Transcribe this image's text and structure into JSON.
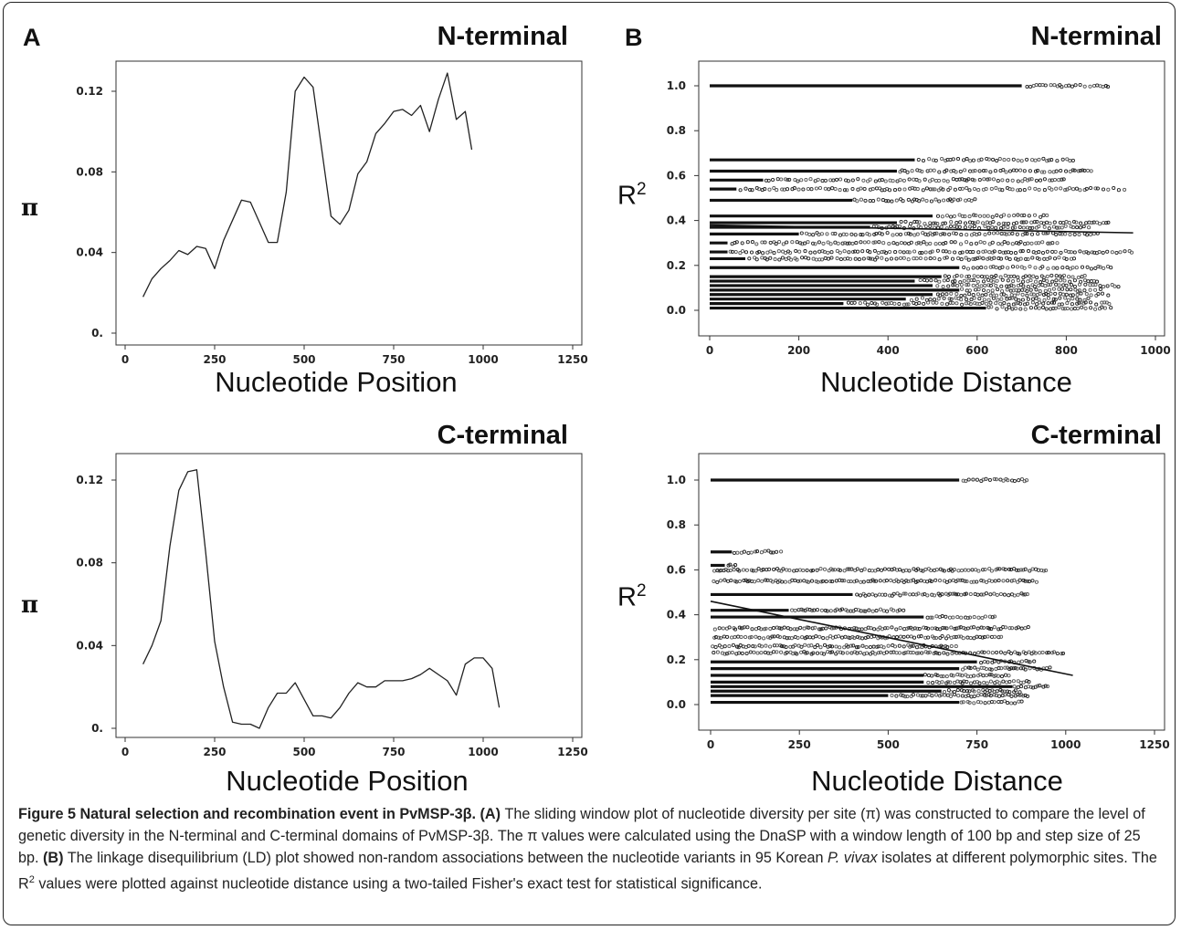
{
  "panels": {
    "a": {
      "letter": "A",
      "top_title": "N-terminal",
      "bottom_title": "C-terminal",
      "top_xlabel": "Nucleotide Position",
      "bottom_xlabel": "Nucleotide Position",
      "ylabel": "π"
    },
    "b": {
      "letter": "B",
      "top_title": "N-terminal",
      "bottom_title": "C-terminal",
      "top_xlabel": "Nucleotide Distance",
      "bottom_xlabel": "Nucleotide Distance",
      "ylabel_base": "R",
      "ylabel_sup": "2"
    }
  },
  "caption": {
    "fig_label": "Figure 5 Natural selection and recombination event in PvMSP-3β.",
    "a_marker": "(A)",
    "a_text": " The sliding window plot of nucleotide diversity per site (π) was constructed to compare the level of genetic diversity in the N-terminal and C-terminal domains of PvMSP-3β. The π values were calculated using the DnaSP with a window length of 100 bp and step size of 25 bp. ",
    "b_marker": "(B)",
    "b_text1": " The linkage disequilibrium (LD) plot showed non-random associations between the nucleotide variants in 95 Korean ",
    "b_italic": "P. vivax",
    "b_text2": " isolates at different polymorphic sites. The R",
    "b_sup": "2",
    "b_text3": " values were plotted against nucleotide distance using a two-tailed Fisher's exact test for statistical significance."
  },
  "chart_data": [
    {
      "id": "A-N",
      "type": "line",
      "xlim": [
        0,
        1250
      ],
      "ylim": [
        0,
        0.12
      ],
      "xticks": [
        "0",
        "250",
        "500",
        "750",
        "1000",
        "1250"
      ],
      "yticks": [
        "0.",
        "0.04",
        "0.08",
        "0.12"
      ],
      "x": [
        50,
        75,
        100,
        125,
        150,
        175,
        200,
        225,
        250,
        275,
        300,
        325,
        350,
        375,
        400,
        425,
        450,
        475,
        500,
        525,
        550,
        575,
        600,
        625,
        650,
        675,
        700,
        725,
        750,
        775,
        800,
        825,
        850,
        875,
        900,
        925,
        950,
        968
      ],
      "y": [
        0.018,
        0.027,
        0.032,
        0.036,
        0.041,
        0.039,
        0.043,
        0.042,
        0.032,
        0.046,
        0.056,
        0.066,
        0.065,
        0.055,
        0.045,
        0.045,
        0.07,
        0.12,
        0.127,
        0.122,
        0.09,
        0.058,
        0.054,
        0.061,
        0.079,
        0.085,
        0.099,
        0.104,
        0.11,
        0.111,
        0.108,
        0.113,
        0.1,
        0.116,
        0.129,
        0.106,
        0.11,
        0.091
      ]
    },
    {
      "id": "A-C",
      "type": "line",
      "xlim": [
        0,
        1250
      ],
      "ylim": [
        0,
        0.12
      ],
      "xticks": [
        "0",
        "250",
        "500",
        "750",
        "1000",
        "1250"
      ],
      "yticks": [
        "0.",
        "0.04",
        "0.08",
        "0.12"
      ],
      "x": [
        50,
        75,
        100,
        125,
        150,
        175,
        200,
        225,
        250,
        275,
        300,
        325,
        350,
        375,
        400,
        425,
        450,
        475,
        500,
        525,
        550,
        575,
        600,
        625,
        650,
        675,
        700,
        725,
        750,
        775,
        800,
        825,
        850,
        875,
        900,
        925,
        950,
        975,
        1000,
        1025,
        1045
      ],
      "y": [
        0.031,
        0.04,
        0.052,
        0.088,
        0.115,
        0.124,
        0.125,
        0.085,
        0.042,
        0.02,
        0.003,
        0.002,
        0.002,
        0.0,
        0.01,
        0.017,
        0.017,
        0.022,
        0.014,
        0.006,
        0.006,
        0.005,
        0.01,
        0.017,
        0.022,
        0.02,
        0.02,
        0.023,
        0.023,
        0.023,
        0.024,
        0.026,
        0.029,
        0.026,
        0.023,
        0.016,
        0.031,
        0.034,
        0.034,
        0.029,
        0.01
      ]
    },
    {
      "id": "B-N",
      "type": "scatter",
      "xlim": [
        0,
        1000
      ],
      "ylim": [
        0,
        1.0
      ],
      "xticks": [
        "0",
        "200",
        "400",
        "600",
        "800",
        "1000"
      ],
      "yticks": [
        "0.0",
        "0.2",
        "0.4",
        "0.6",
        "0.8",
        "1.0"
      ],
      "bands": [
        {
          "y": 1.0,
          "dense_to": 700,
          "sparse_to": 900
        },
        {
          "y": 0.67,
          "dense_to": 460,
          "sparse_to": 820
        },
        {
          "y": 0.62,
          "dense_to": 420,
          "sparse_to": 860
        },
        {
          "y": 0.58,
          "dense_to": 120,
          "sparse_to": 800
        },
        {
          "y": 0.54,
          "dense_to": 60,
          "sparse_to": 940
        },
        {
          "y": 0.49,
          "dense_to": 320,
          "sparse_to": 600
        },
        {
          "y": 0.42,
          "dense_to": 500,
          "sparse_to": 760
        },
        {
          "y": 0.39,
          "dense_to": 420,
          "sparse_to": 900
        },
        {
          "y": 0.37,
          "dense_to": 360,
          "sparse_to": 860
        },
        {
          "y": 0.34,
          "dense_to": 200,
          "sparse_to": 880
        },
        {
          "y": 0.3,
          "dense_to": 40,
          "sparse_to": 780
        },
        {
          "y": 0.26,
          "dense_to": 40,
          "sparse_to": 950
        },
        {
          "y": 0.23,
          "dense_to": 80,
          "sparse_to": 820
        },
        {
          "y": 0.19,
          "dense_to": 560,
          "sparse_to": 900
        },
        {
          "y": 0.15,
          "dense_to": 520,
          "sparse_to": 850
        },
        {
          "y": 0.13,
          "dense_to": 460,
          "sparse_to": 880
        },
        {
          "y": 0.11,
          "dense_to": 500,
          "sparse_to": 920
        },
        {
          "y": 0.09,
          "dense_to": 560,
          "sparse_to": 880
        },
        {
          "y": 0.07,
          "dense_to": 500,
          "sparse_to": 900
        },
        {
          "y": 0.05,
          "dense_to": 440,
          "sparse_to": 860
        },
        {
          "y": 0.03,
          "dense_to": 300,
          "sparse_to": 900
        },
        {
          "y": 0.01,
          "dense_to": 620,
          "sparse_to": 900
        }
      ],
      "trend": {
        "x": [
          0,
          950
        ],
        "y": [
          0.38,
          0.345
        ]
      }
    },
    {
      "id": "B-C",
      "type": "scatter",
      "xlim": [
        0,
        1250
      ],
      "ylim": [
        0,
        1.0
      ],
      "xticks": [
        "0",
        "250",
        "500",
        "750",
        "1000",
        "1250"
      ],
      "yticks": [
        "0.0",
        "0.2",
        "0.4",
        "0.6",
        "0.8",
        "1.0"
      ],
      "bands": [
        {
          "y": 1.0,
          "dense_to": 700,
          "sparse_to": 900
        },
        {
          "y": 0.68,
          "dense_to": 60,
          "sparse_to": 200
        },
        {
          "y": 0.62,
          "dense_to": 40,
          "sparse_to": 80
        },
        {
          "y": 0.6,
          "dense_to": 0,
          "sparse_to": 950
        },
        {
          "y": 0.55,
          "dense_to": 0,
          "sparse_to": 920
        },
        {
          "y": 0.49,
          "dense_to": 400,
          "sparse_to": 900
        },
        {
          "y": 0.42,
          "dense_to": 220,
          "sparse_to": 550
        },
        {
          "y": 0.39,
          "dense_to": 600,
          "sparse_to": 800
        },
        {
          "y": 0.34,
          "dense_to": 0,
          "sparse_to": 900
        },
        {
          "y": 0.3,
          "dense_to": 0,
          "sparse_to": 820
        },
        {
          "y": 0.26,
          "dense_to": 0,
          "sparse_to": 700
        },
        {
          "y": 0.23,
          "dense_to": 0,
          "sparse_to": 1000
        },
        {
          "y": 0.19,
          "dense_to": 750,
          "sparse_to": 920
        },
        {
          "y": 0.16,
          "dense_to": 700,
          "sparse_to": 960
        },
        {
          "y": 0.13,
          "dense_to": 600,
          "sparse_to": 850
        },
        {
          "y": 0.1,
          "dense_to": 600,
          "sparse_to": 900
        },
        {
          "y": 0.08,
          "dense_to": 850,
          "sparse_to": 950
        },
        {
          "y": 0.06,
          "dense_to": 650,
          "sparse_to": 880
        },
        {
          "y": 0.04,
          "dense_to": 500,
          "sparse_to": 900
        },
        {
          "y": 0.01,
          "dense_to": 700,
          "sparse_to": 880
        }
      ],
      "trend": {
        "x": [
          0,
          1020
        ],
        "y": [
          0.46,
          0.13
        ]
      }
    }
  ]
}
